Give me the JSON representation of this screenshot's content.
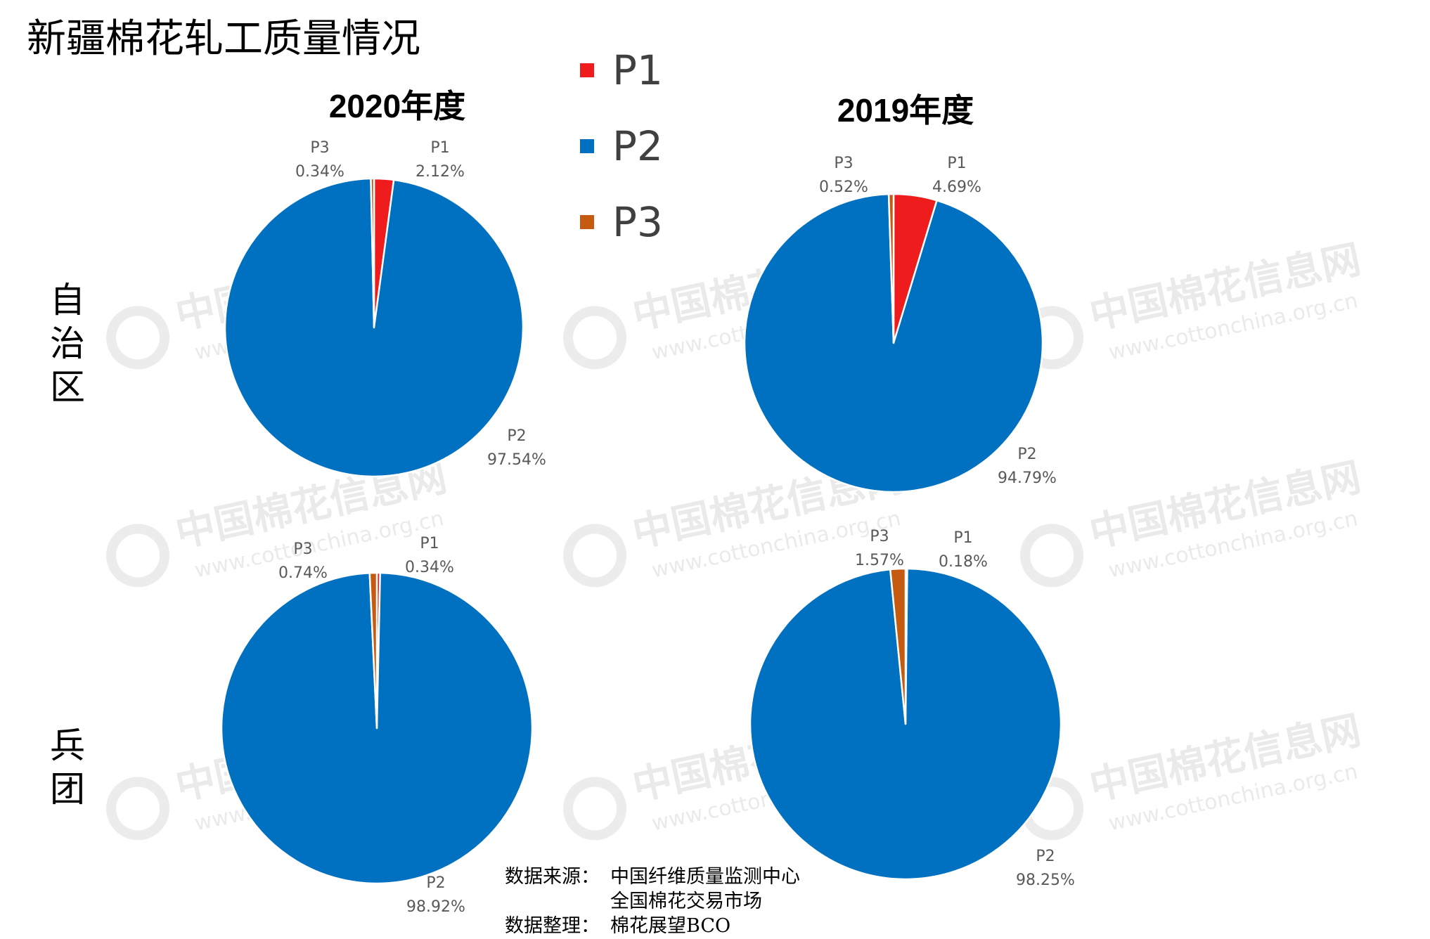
{
  "title": "新疆棉花轧工质量情况",
  "legend": [
    {
      "label": "P1",
      "color": "#ee1c1c"
    },
    {
      "label": "P2",
      "color": "#0070c0"
    },
    {
      "label": "P3",
      "color": "#c55a11"
    }
  ],
  "column_titles": [
    "2020年度",
    "2019年度"
  ],
  "row_labels": [
    "自治区",
    "兵团"
  ],
  "chart_data": [
    {
      "type": "pie",
      "title": "",
      "row": "自治区",
      "column": "2020年度",
      "slices": [
        {
          "label": "P1",
          "value": 2.12,
          "display": "2.12%"
        },
        {
          "label": "P2",
          "value": 97.54,
          "display": "97.54%"
        },
        {
          "label": "P3",
          "value": 0.34,
          "display": "0.34%"
        }
      ]
    },
    {
      "type": "pie",
      "title": "",
      "row": "自治区",
      "column": "2019年度",
      "slices": [
        {
          "label": "P1",
          "value": 4.69,
          "display": "4.69%"
        },
        {
          "label": "P2",
          "value": 94.79,
          "display": "94.79%"
        },
        {
          "label": "P3",
          "value": 0.52,
          "display": "0.52%"
        }
      ]
    },
    {
      "type": "pie",
      "title": "",
      "row": "兵团",
      "column": "2020年度",
      "slices": [
        {
          "label": "P1",
          "value": 0.34,
          "display": "0.34%"
        },
        {
          "label": "P2",
          "value": 98.92,
          "display": "98.92%"
        },
        {
          "label": "P3",
          "value": 0.74,
          "display": "0.74%"
        }
      ]
    },
    {
      "type": "pie",
      "title": "",
      "row": "兵团",
      "column": "2019年度",
      "slices": [
        {
          "label": "P1",
          "value": 0.18,
          "display": "0.18%"
        },
        {
          "label": "P2",
          "value": 98.25,
          "display": "98.25%"
        },
        {
          "label": "P3",
          "value": 1.57,
          "display": "1.57%"
        }
      ]
    }
  ],
  "source": {
    "source_key": "数据来源：",
    "source_lines": [
      "中国纤维质量监测中心",
      "全国棉花交易市场"
    ],
    "compiler_key": "数据整理：",
    "compiler": "棉花展望BCO"
  },
  "watermark": {
    "name": "中国棉花信息网",
    "url": "www.cottonchina.org.cn"
  }
}
